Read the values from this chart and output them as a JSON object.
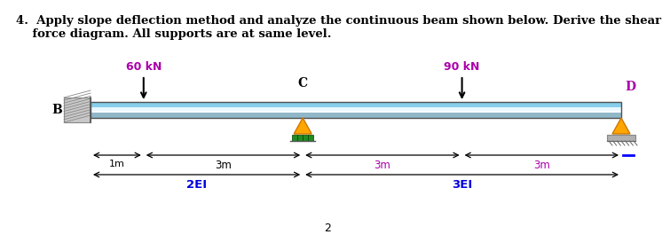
{
  "title_line1": "4.  Apply slope deflection method and analyze the continuous beam shown below. Derive the shear",
  "title_line2": "    force diagram. All supports are at same level.",
  "title_fontsize": 9.5,
  "title_color": "#000000",
  "label_B": "B",
  "label_C": "C",
  "label_D": "D",
  "label_color_B": "#000000",
  "label_color_C": "#000000",
  "label_color_D": "#aa00aa",
  "load1_label": "60 kN",
  "load2_label": "90 kN",
  "load_color": "#aa00aa",
  "dim1_label": "1m",
  "dim2_label": "3m",
  "dim3_label": "3m",
  "dim4_label": "3m",
  "span1_label": "2EI",
  "span2_label": "3EI",
  "span_color": "#0000dd",
  "page_number": "2",
  "background_color": "#ffffff",
  "beam_top_color": "#87CEEB",
  "beam_mid_color": "#e8f8ff",
  "beam_bot_color": "#90b8c8",
  "wall_color": "#c8c8c8"
}
